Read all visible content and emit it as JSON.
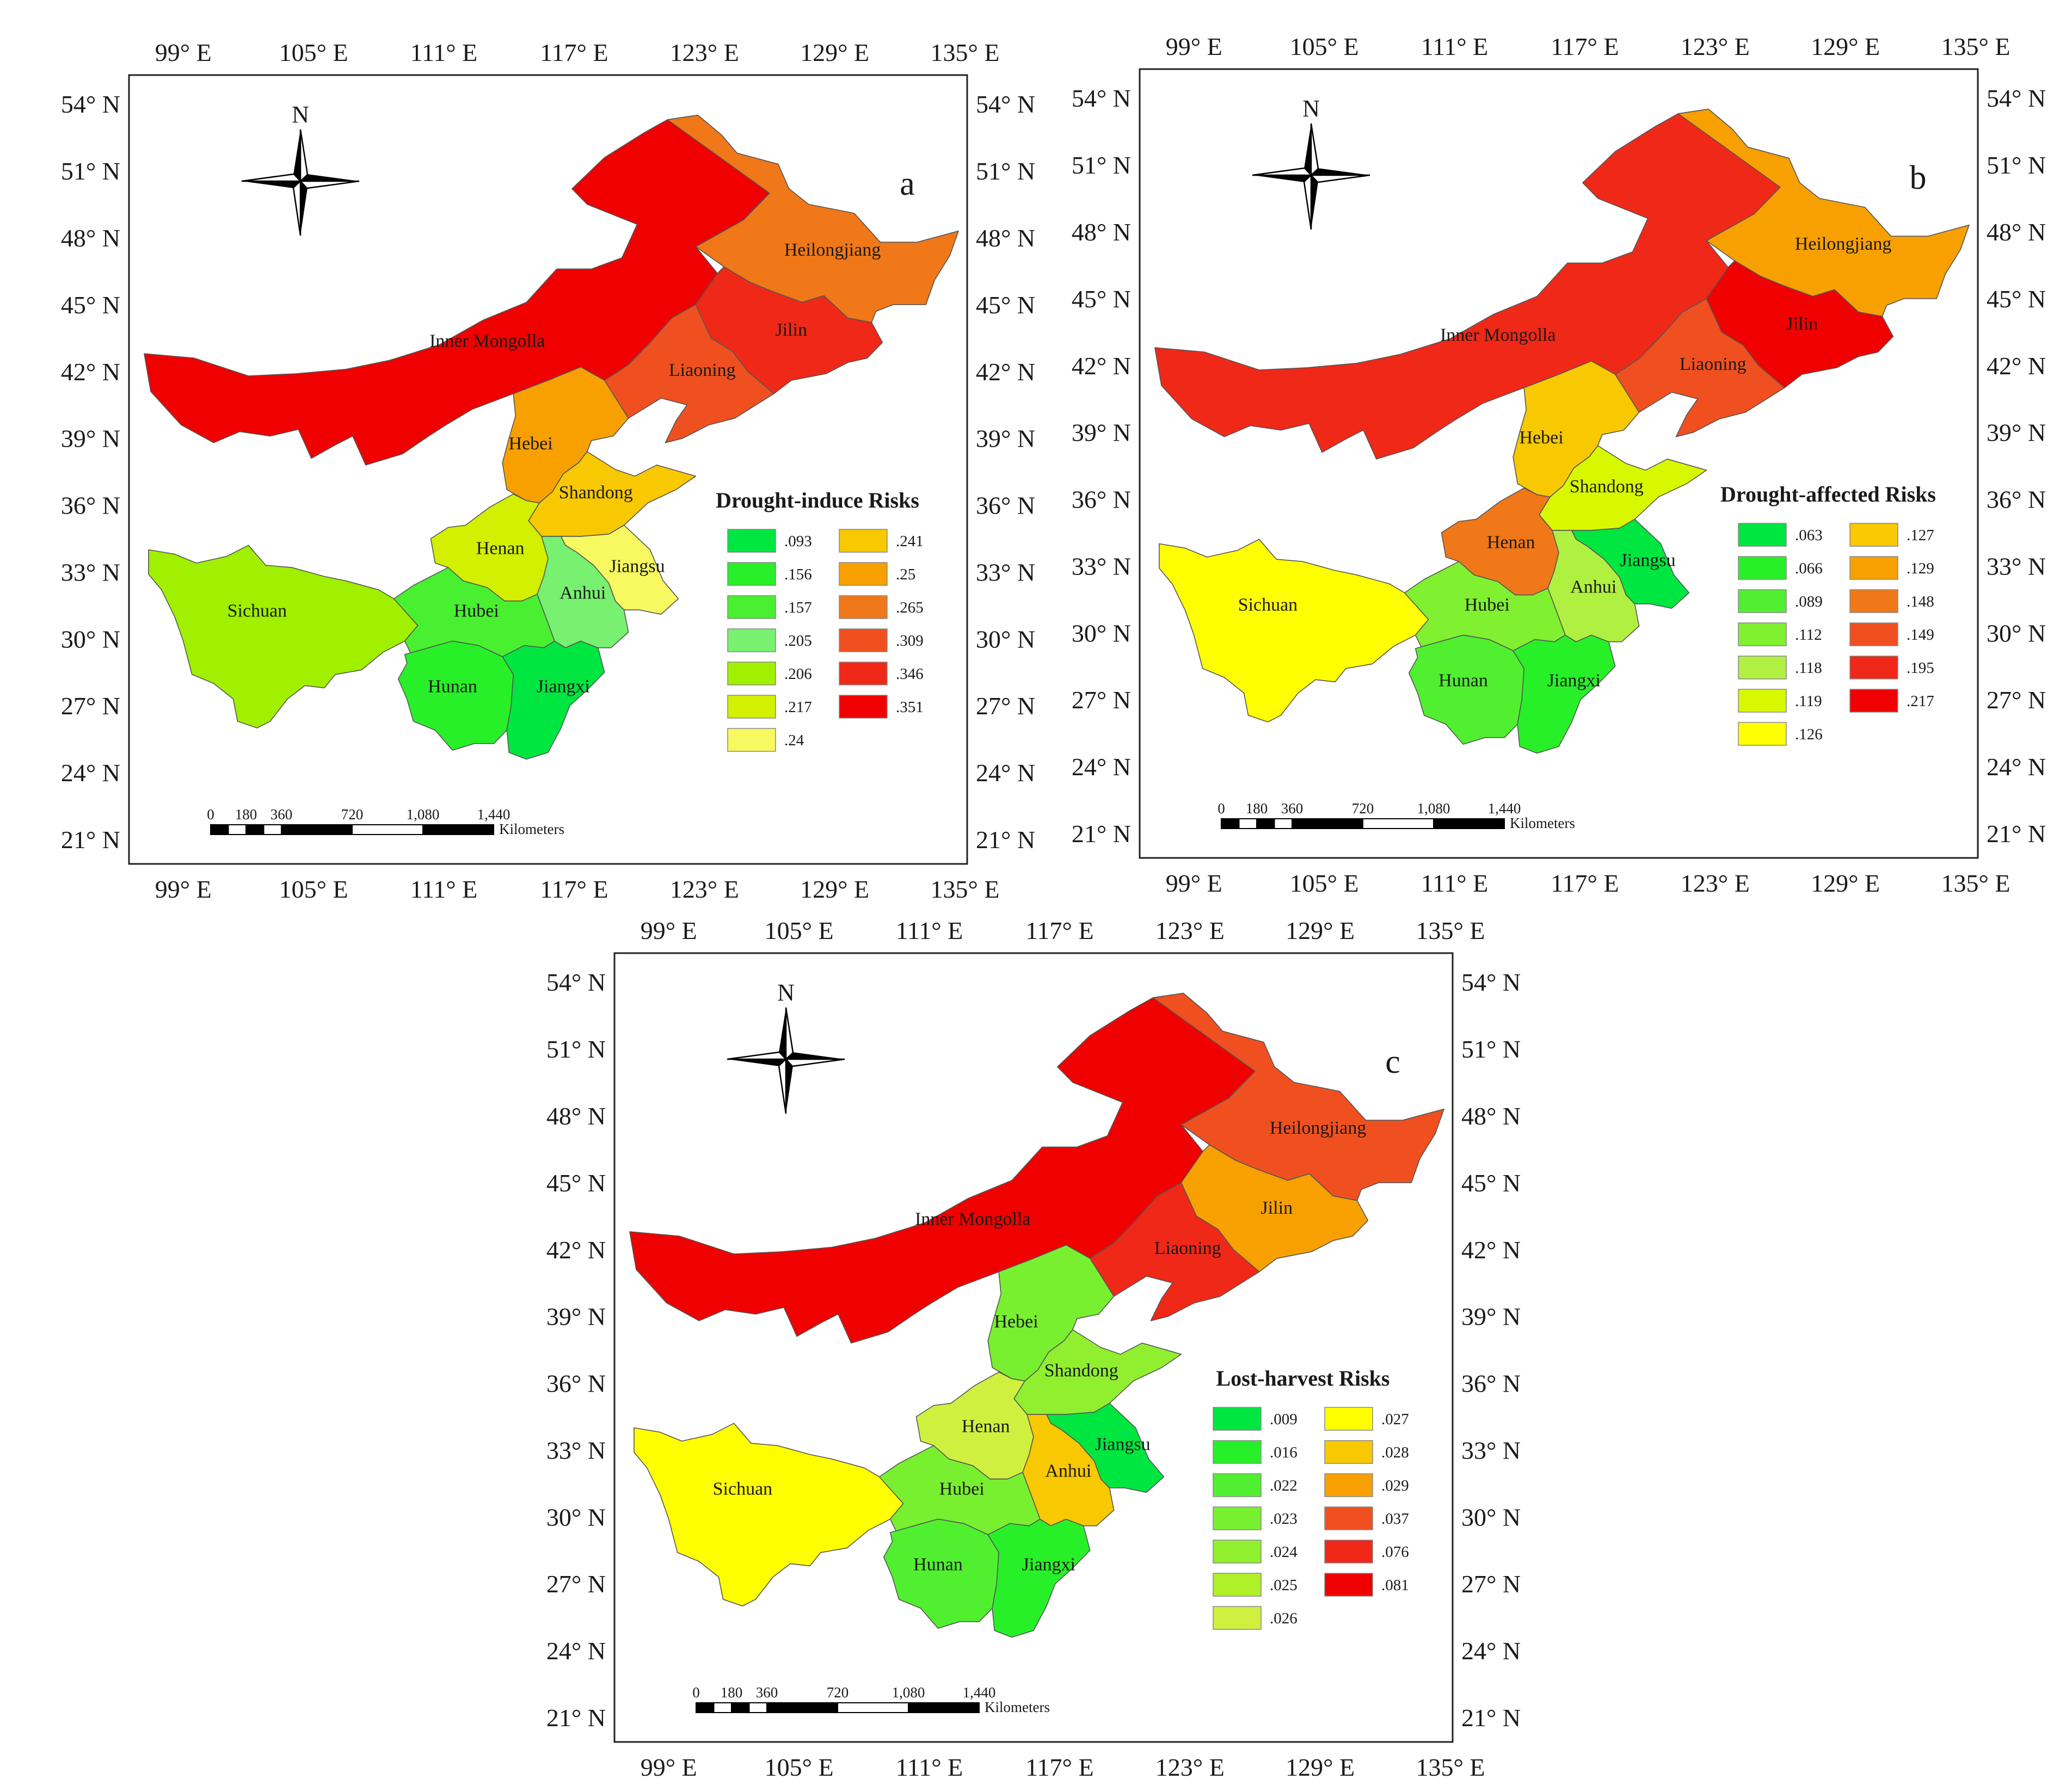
{
  "figure": {
    "axes": {
      "lon_ticks": [
        "99° E",
        "105° E",
        "111° E",
        "117° E",
        "123° E",
        "129° E",
        "135° E"
      ],
      "lat_ticks": [
        "54° N",
        "51° N",
        "48° N",
        "45° N",
        "42° N",
        "39° N",
        "36° N",
        "33° N",
        "30° N",
        "27° N",
        "24° N",
        "21° N"
      ]
    },
    "north_arrow": {
      "label": "N",
      "icon": "north-arrow-compass-icon"
    },
    "scale_bar": {
      "ticks": [
        "0",
        "180",
        "360",
        "720",
        "1,080",
        "1,440"
      ],
      "unit": "Kilometers"
    },
    "provinces": [
      {
        "id": "inner_mongolia",
        "name": "Inner Mongolla"
      },
      {
        "id": "heilongjiang",
        "name": "Heilongjiang"
      },
      {
        "id": "jilin",
        "name": "Jilin"
      },
      {
        "id": "liaoning",
        "name": "Liaoning"
      },
      {
        "id": "hebei",
        "name": "Hebei"
      },
      {
        "id": "shandong",
        "name": "Shandong"
      },
      {
        "id": "henan",
        "name": "Henan"
      },
      {
        "id": "jiangsu",
        "name": "Jiangsu"
      },
      {
        "id": "anhui",
        "name": "Anhui"
      },
      {
        "id": "sichuan",
        "name": "Sichuan"
      },
      {
        "id": "hubei",
        "name": "Hubei"
      },
      {
        "id": "hunan",
        "name": "Hunan"
      },
      {
        "id": "jiangxi",
        "name": "Jiangxi"
      }
    ],
    "panels": [
      {
        "letter": "a",
        "legend_title": "Drought-induce Risks",
        "legend": [
          {
            "label": ".093",
            "color": "#00e640"
          },
          {
            "label": ".156",
            "color": "#28f028"
          },
          {
            "label": ".157",
            "color": "#48f030"
          },
          {
            "label": ".205",
            "color": "#78f070"
          },
          {
            "label": ".206",
            "color": "#a0f000"
          },
          {
            "label": ".217",
            "color": "#d2f000"
          },
          {
            "label": ".24",
            "color": "#f8f860"
          },
          {
            "label": ".241",
            "color": "#f8c800"
          },
          {
            "label": ".25",
            "color": "#f8a000"
          },
          {
            "label": ".265",
            "color": "#f07818"
          },
          {
            "label": ".309",
            "color": "#f05020"
          },
          {
            "label": ".346",
            "color": "#f02818"
          },
          {
            "label": ".351",
            "color": "#f00000"
          }
        ],
        "fills": {
          "inner_mongolia": "#f00000",
          "heilongjiang": "#f07818",
          "jilin": "#f02818",
          "liaoning": "#f05020",
          "hebei": "#f8a000",
          "shandong": "#f8c800",
          "henan": "#d2f000",
          "jiangsu": "#f8f860",
          "anhui": "#78f070",
          "sichuan": "#a0f000",
          "hubei": "#48f030",
          "hunan": "#28f028",
          "jiangxi": "#00e640"
        }
      },
      {
        "letter": "b",
        "legend_title": "Drought-affected Risks",
        "legend": [
          {
            "label": ".063",
            "color": "#00e640"
          },
          {
            "label": ".066",
            "color": "#28f028"
          },
          {
            "label": ".089",
            "color": "#50f030"
          },
          {
            "label": ".112",
            "color": "#80f030"
          },
          {
            "label": ".118",
            "color": "#b0f040"
          },
          {
            "label": ".119",
            "color": "#d8f800"
          },
          {
            "label": ".126",
            "color": "#ffff00"
          },
          {
            "label": ".127",
            "color": "#f8c800"
          },
          {
            "label": ".129",
            "color": "#f8a000"
          },
          {
            "label": ".148",
            "color": "#f07818"
          },
          {
            "label": ".149",
            "color": "#f05020"
          },
          {
            "label": ".195",
            "color": "#f02818"
          },
          {
            "label": ".217",
            "color": "#f00000"
          }
        ],
        "fills": {
          "inner_mongolia": "#f02818",
          "heilongjiang": "#f8a000",
          "jilin": "#f00000",
          "liaoning": "#f05020",
          "hebei": "#f8c800",
          "shandong": "#d8f800",
          "henan": "#f07818",
          "jiangsu": "#00e640",
          "anhui": "#b0f040",
          "sichuan": "#ffff00",
          "hubei": "#80f030",
          "hunan": "#50f030",
          "jiangxi": "#28f028"
        }
      },
      {
        "letter": "c",
        "legend_title": "Lost-harvest Risks",
        "legend": [
          {
            "label": ".009",
            "color": "#00e640"
          },
          {
            "label": ".016",
            "color": "#28f028"
          },
          {
            "label": ".022",
            "color": "#50f030"
          },
          {
            "label": ".023",
            "color": "#78f030"
          },
          {
            "label": ".024",
            "color": "#90f030"
          },
          {
            "label": ".025",
            "color": "#b0f028"
          },
          {
            "label": ".026",
            "color": "#d0f040"
          },
          {
            "label": ".027",
            "color": "#ffff00"
          },
          {
            "label": ".028",
            "color": "#f8c800"
          },
          {
            "label": ".029",
            "color": "#f8a000"
          },
          {
            "label": ".037",
            "color": "#f05020"
          },
          {
            "label": ".076",
            "color": "#f02818"
          },
          {
            "label": ".081",
            "color": "#f00000"
          }
        ],
        "fills": {
          "inner_mongolia": "#f00000",
          "heilongjiang": "#f05020",
          "jilin": "#f8a000",
          "liaoning": "#f02818",
          "hebei": "#78f030",
          "shandong": "#90f030",
          "henan": "#d0f040",
          "jiangsu": "#00e640",
          "anhui": "#f8c800",
          "sichuan": "#ffff00",
          "hubei": "#78f030",
          "hunan": "#50f030",
          "jiangxi": "#28f028"
        }
      }
    ]
  }
}
